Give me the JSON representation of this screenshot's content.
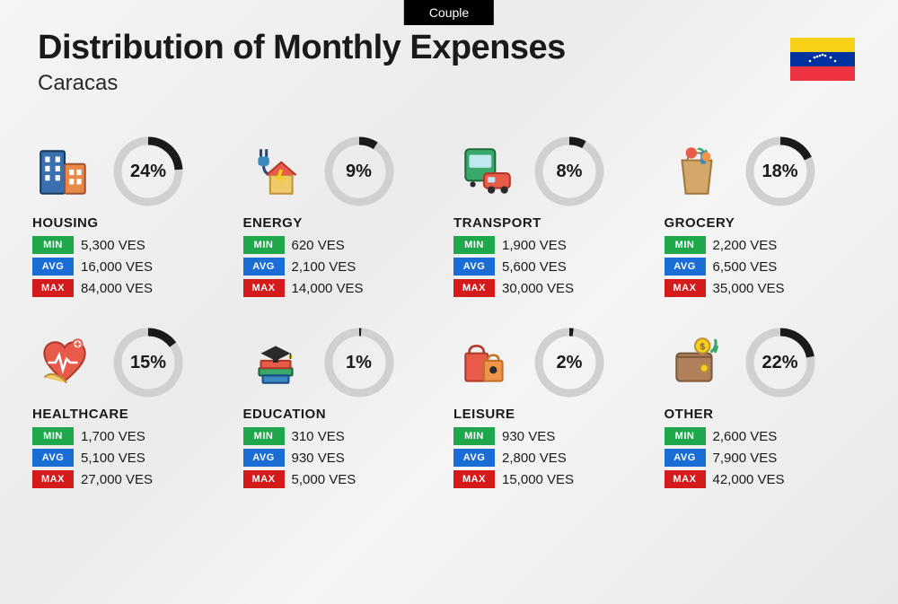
{
  "tab_label": "Couple",
  "title": "Distribution of Monthly Expenses",
  "subtitle": "Caracas",
  "currency": "VES",
  "badges": {
    "min": "MIN",
    "avg": "AVG",
    "max": "MAX"
  },
  "badge_colors": {
    "min": "#1fa84b",
    "avg": "#1a6dd4",
    "max": "#d41a1a"
  },
  "flag_colors": {
    "top": "#f7d117",
    "middle": "#0033a0",
    "bottom": "#ef3340",
    "star": "#ffffff"
  },
  "donut": {
    "bg_color": "#d0d0d0",
    "fg_color": "#1a1a1a",
    "stroke_width": 9,
    "radius": 34,
    "size": 82
  },
  "background_color": "#f0f0f0",
  "categories": [
    {
      "key": "housing",
      "name": "HOUSING",
      "pct": 24,
      "min": "5,300",
      "avg": "16,000",
      "max": "84,000"
    },
    {
      "key": "energy",
      "name": "ENERGY",
      "pct": 9,
      "min": "620",
      "avg": "2,100",
      "max": "14,000"
    },
    {
      "key": "transport",
      "name": "TRANSPORT",
      "pct": 8,
      "min": "1,900",
      "avg": "5,600",
      "max": "30,000"
    },
    {
      "key": "grocery",
      "name": "GROCERY",
      "pct": 18,
      "min": "2,200",
      "avg": "6,500",
      "max": "35,000"
    },
    {
      "key": "healthcare",
      "name": "HEALTHCARE",
      "pct": 15,
      "min": "1,700",
      "avg": "5,100",
      "max": "27,000"
    },
    {
      "key": "education",
      "name": "EDUCATION",
      "pct": 1,
      "min": "310",
      "avg": "930",
      "max": "5,000"
    },
    {
      "key": "leisure",
      "name": "LEISURE",
      "pct": 2,
      "min": "930",
      "avg": "2,800",
      "max": "15,000"
    },
    {
      "key": "other",
      "name": "OTHER",
      "pct": 22,
      "min": "2,600",
      "avg": "7,900",
      "max": "42,000"
    }
  ]
}
